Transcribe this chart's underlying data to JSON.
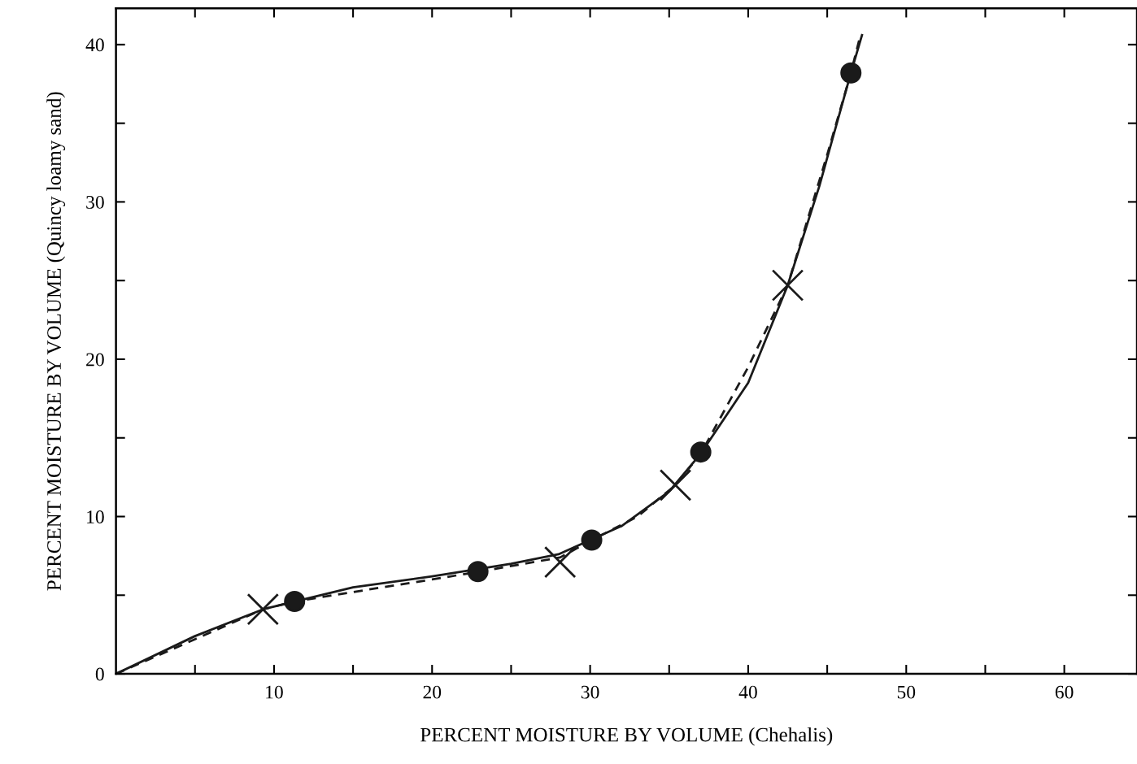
{
  "chart_data": {
    "type": "line",
    "xlabel": "PERCENT MOISTURE BY VOLUME (Chehalis)",
    "ylabel": "PERCENT MOISTURE BY VOLUME (Quincy loamy sand)",
    "xlim": [
      0,
      64.6
    ],
    "ylim": [
      0,
      42.3
    ],
    "xticks": [
      {
        "value": 5,
        "label": null
      },
      10,
      {
        "value": 15,
        "label": null
      },
      20,
      {
        "value": 25,
        "label": null
      },
      30,
      {
        "value": 35,
        "label": null
      },
      40,
      {
        "value": 45,
        "label": null
      },
      50,
      {
        "value": 55,
        "label": null
      },
      60
    ],
    "yticks": [
      0,
      {
        "value": 5,
        "label": null
      },
      10,
      {
        "value": 15,
        "label": null
      },
      20,
      {
        "value": 25,
        "label": null
      },
      30,
      {
        "value": 35,
        "label": null
      },
      40
    ],
    "grid": false,
    "legend": false,
    "series": [
      {
        "color": "#1a1a1a",
        "line_style": "solid",
        "marker": "none",
        "x": [
          0,
          5,
          9.3,
          15,
          20,
          25,
          28,
          32,
          35,
          37,
          40,
          42.5,
          44.5,
          46.5,
          47.2
        ],
        "values": [
          0,
          2.4,
          4.1,
          5.5,
          6.2,
          7.0,
          7.6,
          9.4,
          11.6,
          14.0,
          18.5,
          24.7,
          31,
          38.2,
          40.6
        ]
      },
      {
        "color": "#1a1a1a",
        "line_style": "dashed",
        "marker": "none",
        "x": [
          0,
          5,
          9.3,
          11.3,
          15,
          20,
          23,
          28.1,
          30.1,
          33,
          35.4,
          37,
          40,
          42.5,
          45,
          46.5,
          47.1
        ],
        "values": [
          0,
          2.2,
          4.1,
          4.6,
          5.2,
          6.0,
          6.5,
          7.4,
          8.5,
          10.0,
          12.0,
          14.0,
          19.5,
          24.7,
          33,
          38.2,
          40.6
        ]
      },
      {
        "type": "scatter",
        "color": "#1a1a1a",
        "marker": "circle",
        "x": [
          11.3,
          22.9,
          30.1,
          37.0,
          46.5
        ],
        "values": [
          4.6,
          6.5,
          8.5,
          14.1,
          38.2
        ]
      },
      {
        "type": "scatter",
        "color": "#1a1a1a",
        "marker": "cross",
        "x": [
          9.3,
          28.1,
          35.4,
          42.5
        ],
        "values": [
          4.1,
          7.1,
          12.0,
          24.7
        ]
      }
    ]
  }
}
